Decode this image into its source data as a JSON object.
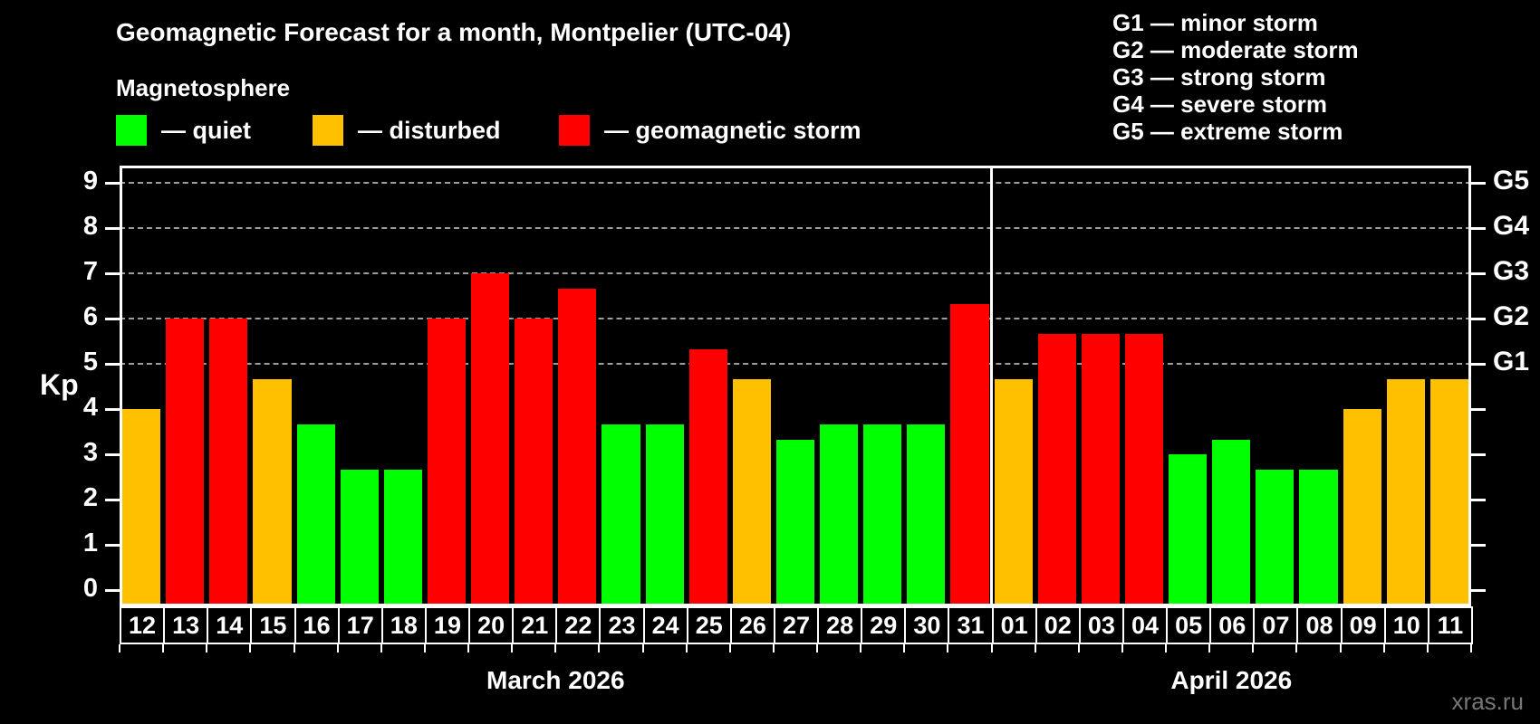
{
  "header": {
    "title": "Geomagnetic Forecast for a month, Montpelier (UTC-04)",
    "subtitle": "Magnetosphere"
  },
  "magnetosphere_legend": [
    {
      "state": "quiet",
      "label": "— quiet",
      "color": "#00ff00"
    },
    {
      "state": "disturbed",
      "label": "— disturbed",
      "color": "#ffc000"
    },
    {
      "state": "geomagnetic storm",
      "label": "— geomagnetic storm",
      "color": "#ff0000"
    }
  ],
  "storm_scale_legend": [
    "G1 — minor storm",
    "G2 — moderate storm",
    "G3 — strong storm",
    "G4 — severe storm",
    "G5 — extreme storm"
  ],
  "watermark": "xras.ru",
  "chart_data": {
    "type": "bar",
    "title": "Geomagnetic Forecast for a month, Montpelier (UTC-04)",
    "ylabel": "Kp",
    "ylim": [
      0,
      9
    ],
    "y_ticks": [
      0,
      1,
      2,
      3,
      4,
      5,
      6,
      7,
      8,
      9
    ],
    "gridlines_at": [
      5,
      6,
      7,
      8,
      9
    ],
    "grid": "dashed horizontal at Kp 5-9 only",
    "right_axis_labels": [
      {
        "kp": 5,
        "label": "G1"
      },
      {
        "kp": 6,
        "label": "G2"
      },
      {
        "kp": 7,
        "label": "G3"
      },
      {
        "kp": 8,
        "label": "G4"
      },
      {
        "kp": 9,
        "label": "G5"
      }
    ],
    "color_rules": {
      "quiet_below": 4,
      "disturbed_below": 5,
      "storm_at_or_above": 5
    },
    "colors_by_state": {
      "quiet": "#00ff00",
      "disturbed": "#ffc000",
      "storm": "#ff0000"
    },
    "months": [
      {
        "label": "March 2026",
        "days": 20
      },
      {
        "label": "April 2026",
        "days": 11
      }
    ],
    "categories": [
      "12",
      "13",
      "14",
      "15",
      "16",
      "17",
      "18",
      "19",
      "20",
      "21",
      "22",
      "23",
      "24",
      "25",
      "26",
      "27",
      "28",
      "29",
      "30",
      "31",
      "01",
      "02",
      "03",
      "04",
      "05",
      "06",
      "07",
      "08",
      "09",
      "10",
      "11"
    ],
    "series": [
      {
        "name": "Kp forecast",
        "values": [
          4.0,
          6.0,
          6.0,
          4.67,
          3.67,
          2.67,
          2.67,
          6.0,
          7.0,
          6.0,
          6.67,
          3.67,
          3.67,
          5.33,
          4.67,
          3.33,
          3.67,
          3.67,
          3.67,
          6.33,
          4.67,
          5.67,
          5.67,
          5.67,
          3.0,
          3.33,
          2.67,
          2.67,
          4.0,
          4.67,
          4.67
        ]
      }
    ]
  }
}
